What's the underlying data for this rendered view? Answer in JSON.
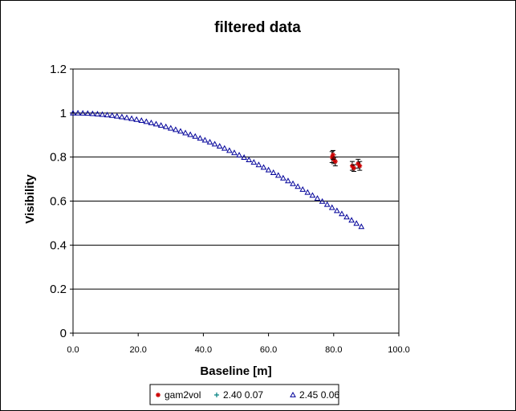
{
  "chart_data": {
    "type": "scatter",
    "title": "filtered data",
    "xlabel": "Baseline [m]",
    "ylabel": "Visibility",
    "xlim": [
      0,
      100
    ],
    "ylim": [
      0,
      1.2
    ],
    "x_ticks": [
      "0.0",
      "20.0",
      "40.0",
      "60.0",
      "80.0",
      "100.0"
    ],
    "y_ticks": [
      "0",
      "0.2",
      "0.4",
      "0.6",
      "0.8",
      "1",
      "1.2"
    ],
    "grid": "horizontal",
    "legend_position": "bottom",
    "series": [
      {
        "name": "gam2vol",
        "marker": "star",
        "color": "#cc0000",
        "points": [
          {
            "x": 79.5,
            "y": 0.8,
            "err": 0.025
          },
          {
            "x": 80.0,
            "y": 0.79,
            "err": 0.02
          },
          {
            "x": 80.5,
            "y": 0.78,
            "err": 0.02
          },
          {
            "x": 79.8,
            "y": 0.81,
            "err": 0.02
          },
          {
            "x": 85.7,
            "y": 0.76,
            "err": 0.02
          },
          {
            "x": 86.2,
            "y": 0.75,
            "err": 0.015
          },
          {
            "x": 87.5,
            "y": 0.77,
            "err": 0.02
          },
          {
            "x": 88.0,
            "y": 0.76,
            "err": 0.02
          }
        ]
      },
      {
        "name": "2.40 0.07",
        "marker": "cross",
        "color": "#008080",
        "points": []
      },
      {
        "name": "2.45 0.06",
        "marker": "triangle",
        "color": "#000099",
        "points": [
          {
            "x": 0,
            "y": 1.0
          },
          {
            "x": 1.5,
            "y": 0.9998
          },
          {
            "x": 3,
            "y": 0.9993
          },
          {
            "x": 4.5,
            "y": 0.9984
          },
          {
            "x": 6,
            "y": 0.9972
          },
          {
            "x": 7.5,
            "y": 0.9956
          },
          {
            "x": 9,
            "y": 0.9937
          },
          {
            "x": 10.5,
            "y": 0.9914
          },
          {
            "x": 12,
            "y": 0.9888
          },
          {
            "x": 13.5,
            "y": 0.9858
          },
          {
            "x": 15,
            "y": 0.9825
          },
          {
            "x": 16.5,
            "y": 0.9789
          },
          {
            "x": 18,
            "y": 0.9749
          },
          {
            "x": 19.5,
            "y": 0.9706
          },
          {
            "x": 21,
            "y": 0.966
          },
          {
            "x": 22.5,
            "y": 0.961
          },
          {
            "x": 24,
            "y": 0.9557
          },
          {
            "x": 25.5,
            "y": 0.9501
          },
          {
            "x": 27,
            "y": 0.9442
          },
          {
            "x": 28.5,
            "y": 0.9379
          },
          {
            "x": 30,
            "y": 0.9313
          },
          {
            "x": 31.5,
            "y": 0.9245
          },
          {
            "x": 33,
            "y": 0.9173
          },
          {
            "x": 34.5,
            "y": 0.9098
          },
          {
            "x": 36,
            "y": 0.902
          },
          {
            "x": 37.5,
            "y": 0.894
          },
          {
            "x": 39,
            "y": 0.8856
          },
          {
            "x": 40.5,
            "y": 0.877
          },
          {
            "x": 42,
            "y": 0.8681
          },
          {
            "x": 43.5,
            "y": 0.8589
          },
          {
            "x": 45,
            "y": 0.8495
          },
          {
            "x": 46.5,
            "y": 0.8398
          },
          {
            "x": 48,
            "y": 0.8298
          },
          {
            "x": 49.5,
            "y": 0.8196
          },
          {
            "x": 51,
            "y": 0.8091
          },
          {
            "x": 52.5,
            "y": 0.7984
          },
          {
            "x": 54,
            "y": 0.7875
          },
          {
            "x": 55.5,
            "y": 0.7763
          },
          {
            "x": 57,
            "y": 0.7649
          },
          {
            "x": 58.5,
            "y": 0.7533
          },
          {
            "x": 60,
            "y": 0.7414
          },
          {
            "x": 61.5,
            "y": 0.7293
          },
          {
            "x": 63,
            "y": 0.717
          },
          {
            "x": 64.5,
            "y": 0.7046
          },
          {
            "x": 66,
            "y": 0.6919
          },
          {
            "x": 67.5,
            "y": 0.6791
          },
          {
            "x": 69,
            "y": 0.666
          },
          {
            "x": 70.5,
            "y": 0.6528
          },
          {
            "x": 72,
            "y": 0.6395
          },
          {
            "x": 73.5,
            "y": 0.626
          },
          {
            "x": 75,
            "y": 0.6123
          },
          {
            "x": 76.5,
            "y": 0.5985
          },
          {
            "x": 78,
            "y": 0.5846
          },
          {
            "x": 79.5,
            "y": 0.5705
          },
          {
            "x": 81,
            "y": 0.5563
          },
          {
            "x": 82.5,
            "y": 0.542
          },
          {
            "x": 84,
            "y": 0.5276
          },
          {
            "x": 85.5,
            "y": 0.5131
          },
          {
            "x": 87,
            "y": 0.4985
          },
          {
            "x": 88.5,
            "y": 0.4839
          }
        ]
      }
    ]
  }
}
